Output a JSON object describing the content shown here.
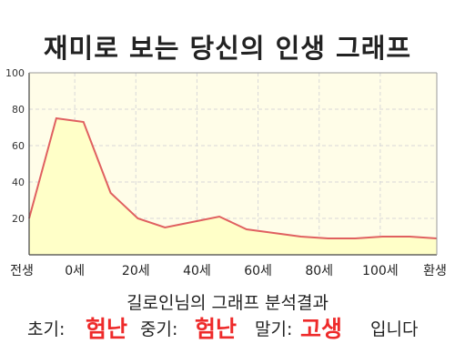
{
  "page": {
    "title": "재미로 보는 당신의 인생 그래프"
  },
  "chart_data": {
    "type": "area",
    "x_tick_labels": [
      "전생",
      "0세",
      "20세",
      "40세",
      "60세",
      "80세",
      "100세",
      "환생"
    ],
    "y_ticks": [
      20,
      40,
      60,
      80,
      100
    ],
    "ylim": [
      0,
      100
    ],
    "grid": true,
    "series": [
      {
        "x": [
          0,
          1,
          2,
          3,
          4,
          5,
          6,
          7,
          8,
          9,
          10,
          11,
          12,
          13,
          14,
          15
        ],
        "values": [
          20,
          75,
          73,
          34,
          20,
          15,
          18,
          21,
          14,
          12,
          10,
          9,
          9,
          10,
          10,
          9
        ]
      }
    ],
    "colors": {
      "line": "#e06060",
      "fill": "#ffffc8",
      "plot_bg": "#fffde8",
      "grid": "#d8d8d8"
    }
  },
  "result": {
    "heading": "길로인님의 그래프 분석결과",
    "early_label": "초기:",
    "early_value": "험난",
    "mid_label": "중기:",
    "mid_value": "험난",
    "late_label": "말기:",
    "late_value": "고생",
    "suffix": "입니다"
  }
}
